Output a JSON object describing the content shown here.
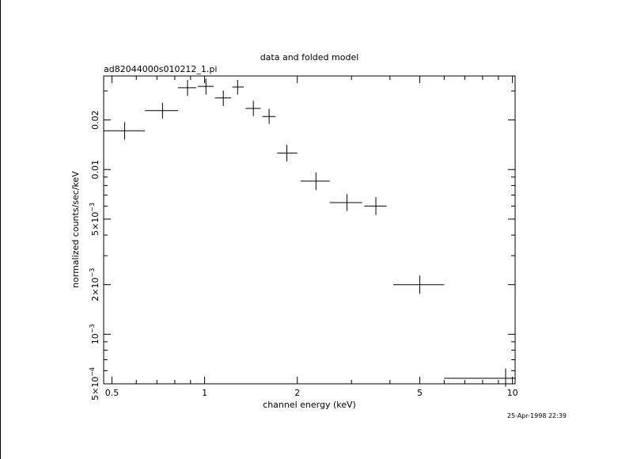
{
  "chart_data": {
    "type": "scatter",
    "title": "data and folded model",
    "subtitle": "ad82044000s010212_1.pi",
    "xlabel": "channel energy (keV)",
    "ylabel": "normalized counts/sec/keV",
    "timestamp": "25-Apr-1998 22:39",
    "x_scale": "log",
    "y_scale": "log",
    "xlim": [
      0.47,
      10.2
    ],
    "ylim": [
      0.0005,
      0.037
    ],
    "x_ticks": [
      {
        "value": 0.5,
        "label": "0.5"
      },
      {
        "value": 1,
        "label": "1"
      },
      {
        "value": 2,
        "label": "2"
      },
      {
        "value": 5,
        "label": "5"
      },
      {
        "value": 10,
        "label": "10"
      }
    ],
    "y_ticks": [
      {
        "value": 0.0005,
        "mant": "5×10",
        "exp": "−4"
      },
      {
        "value": 0.001,
        "mant": "10",
        "exp": "−3"
      },
      {
        "value": 0.002,
        "mant": "2×10",
        "exp": "−3"
      },
      {
        "value": 0.005,
        "mant": "5×10",
        "exp": "−3"
      },
      {
        "value": 0.01,
        "mant": "0.01",
        "exp": ""
      },
      {
        "value": 0.02,
        "mant": "0.02",
        "exp": ""
      }
    ],
    "grid": false,
    "series": [
      {
        "points": [
          {
            "x": 0.55,
            "xlo": 0.47,
            "xhi": 0.64,
            "y": 0.0172,
            "ylo": 0.0152,
            "yhi": 0.0194
          },
          {
            "x": 0.73,
            "xlo": 0.64,
            "xhi": 0.82,
            "y": 0.0228,
            "ylo": 0.0204,
            "yhi": 0.0254
          },
          {
            "x": 0.88,
            "xlo": 0.82,
            "xhi": 0.94,
            "y": 0.0314,
            "ylo": 0.028,
            "yhi": 0.035
          },
          {
            "x": 1.01,
            "xlo": 0.95,
            "xhi": 1.07,
            "y": 0.032,
            "ylo": 0.0285,
            "yhi": 0.0356
          },
          {
            "x": 1.15,
            "xlo": 1.08,
            "xhi": 1.22,
            "y": 0.0272,
            "ylo": 0.0243,
            "yhi": 0.0302
          },
          {
            "x": 1.28,
            "xlo": 1.23,
            "xhi": 1.34,
            "y": 0.0317,
            "ylo": 0.0285,
            "yhi": 0.035
          },
          {
            "x": 1.44,
            "xlo": 1.36,
            "xhi": 1.52,
            "y": 0.0235,
            "ylo": 0.0211,
            "yhi": 0.0262
          },
          {
            "x": 1.62,
            "xlo": 1.54,
            "xhi": 1.7,
            "y": 0.021,
            "ylo": 0.0189,
            "yhi": 0.0234
          },
          {
            "x": 1.85,
            "xlo": 1.72,
            "xhi": 2.0,
            "y": 0.0126,
            "ylo": 0.0112,
            "yhi": 0.0141
          },
          {
            "x": 2.3,
            "xlo": 2.05,
            "xhi": 2.55,
            "y": 0.0085,
            "ylo": 0.0075,
            "yhi": 0.0096
          },
          {
            "x": 2.9,
            "xlo": 2.55,
            "xhi": 3.25,
            "y": 0.0063,
            "ylo": 0.0056,
            "yhi": 0.0071
          },
          {
            "x": 3.6,
            "xlo": 3.3,
            "xhi": 3.9,
            "y": 0.006,
            "ylo": 0.0053,
            "yhi": 0.0068
          },
          {
            "x": 5.0,
            "xlo": 4.1,
            "xhi": 6.0,
            "y": 0.002,
            "ylo": 0.00176,
            "yhi": 0.00227
          },
          {
            "x": 9.5,
            "xlo": 6.0,
            "xhi": 10.2,
            "y": 0.00054,
            "ylo": 0.00048,
            "yhi": 0.00062
          }
        ]
      }
    ]
  }
}
